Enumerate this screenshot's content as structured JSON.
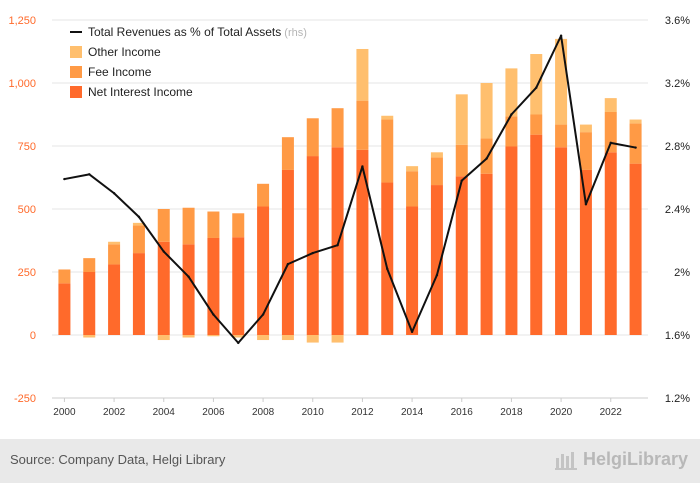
{
  "chart_data": {
    "type": "bar",
    "stacked": true,
    "categories": [
      "2000",
      "2001",
      "2002",
      "2003",
      "2004",
      "2005",
      "2006",
      "2007",
      "2008",
      "2009",
      "2010",
      "2011",
      "2012",
      "2013",
      "2014",
      "2015",
      "2016",
      "2017",
      "2018",
      "2019",
      "2020",
      "2021",
      "2022",
      "2023"
    ],
    "x_tick_labels": [
      "2000",
      "2002",
      "2004",
      "2006",
      "2008",
      "2010",
      "2012",
      "2014",
      "2016",
      "2018",
      "2020",
      "2022"
    ],
    "series": [
      {
        "name": "Net Interest Income",
        "color": "#ff6a2b",
        "axis": "left",
        "values": [
          205,
          250,
          280,
          325,
          370,
          360,
          385,
          388,
          510,
          655,
          710,
          745,
          735,
          605,
          510,
          595,
          630,
          640,
          748,
          795,
          745,
          655,
          725,
          680
        ]
      },
      {
        "name": "Fee Income",
        "color": "#ff9a45",
        "axis": "left",
        "values": [
          55,
          55,
          80,
          110,
          130,
          145,
          105,
          95,
          90,
          130,
          150,
          155,
          195,
          250,
          140,
          110,
          125,
          140,
          120,
          80,
          90,
          150,
          160,
          160
        ]
      },
      {
        "name": "Other Income",
        "color": "#ffbf6e",
        "axis": "left",
        "values": [
          0,
          -10,
          10,
          10,
          -20,
          -10,
          -5,
          -10,
          -20,
          -20,
          -30,
          -30,
          205,
          15,
          20,
          20,
          200,
          220,
          190,
          240,
          340,
          30,
          55,
          15
        ]
      },
      {
        "name": "Total Revenues as % of Total Assets",
        "unit_note": "(rhs)",
        "type": "line",
        "color": "#111111",
        "axis": "right",
        "values": [
          2.59,
          2.62,
          2.5,
          2.35,
          2.13,
          1.97,
          1.73,
          1.55,
          1.73,
          2.05,
          2.12,
          2.17,
          2.67,
          2.02,
          1.62,
          1.98,
          2.58,
          2.72,
          3.0,
          3.17,
          3.5,
          2.43,
          2.82,
          2.79
        ]
      }
    ],
    "y_left": {
      "min": -250,
      "max": 1250,
      "ticks": [
        -250,
        0,
        250,
        500,
        750,
        "1,000",
        "1,250"
      ],
      "tick_values": [
        -250,
        0,
        250,
        500,
        750,
        1000,
        1250
      ],
      "tick_labels": [
        "-250",
        "0",
        "250",
        "500",
        "750",
        "1,000",
        "1,250"
      ]
    },
    "y_right": {
      "min": 1.2,
      "max": 3.6,
      "tick_values": [
        1.2,
        1.6,
        2.0,
        2.4,
        2.8,
        3.2,
        3.6
      ],
      "tick_labels": [
        "1.2%",
        "1.6%",
        "2%",
        "2.4%",
        "2.8%",
        "3.2%",
        "3.6%"
      ]
    },
    "legend": {
      "position": "top-left",
      "order": [
        "Total Revenues as % of Total Assets",
        "Other Income",
        "Fee Income",
        "Net Interest Income"
      ]
    },
    "grid": true
  },
  "footer": {
    "source": "Source: Company Data, Helgi Library",
    "brand": "HelgiLibrary"
  }
}
